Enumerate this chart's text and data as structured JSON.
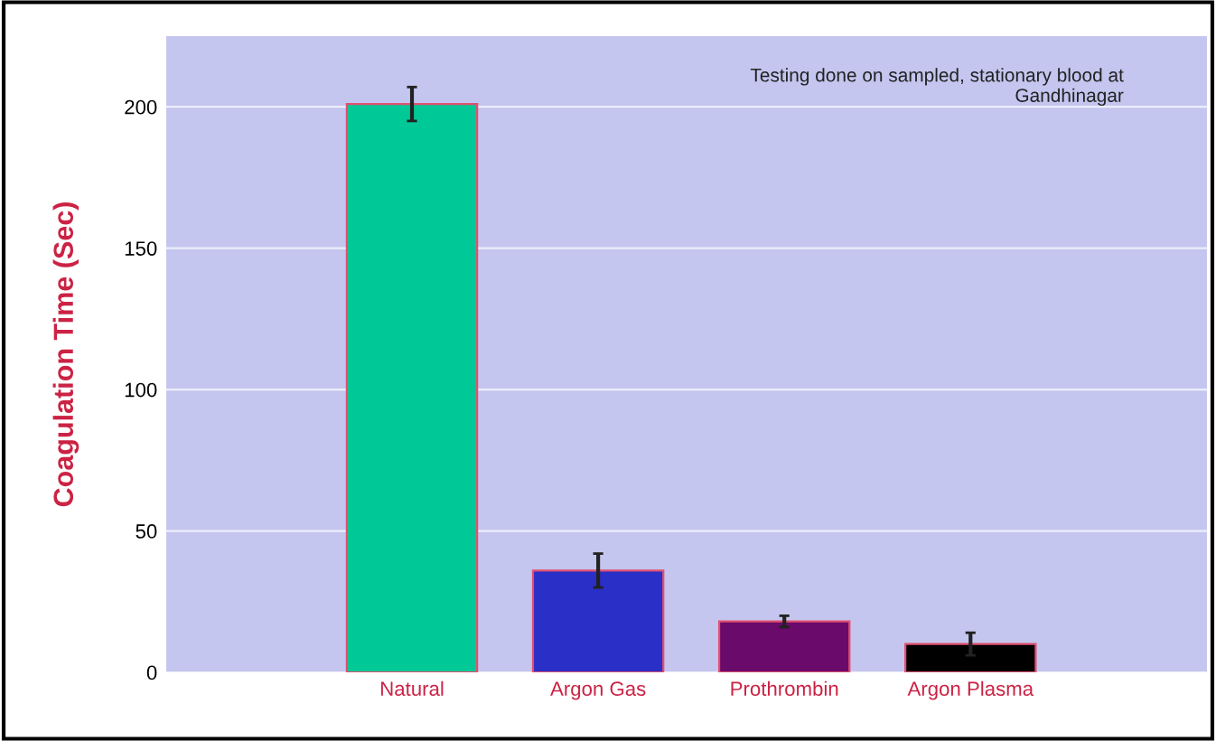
{
  "chart_data": {
    "type": "bar",
    "ylabel": "Coagulation Time (Sec)",
    "categories": [
      "Natural",
      "Argon Gas",
      "Prothrombin",
      "Argon Plasma"
    ],
    "values": [
      201,
      36,
      18,
      10
    ],
    "errors": [
      6,
      6,
      2,
      4
    ],
    "colors": [
      "#00c896",
      "#2a2fc8",
      "#6a0a6a",
      "#000000"
    ],
    "ylim": [
      0,
      225
    ],
    "yticks": [
      0,
      50,
      100,
      150,
      200
    ],
    "grid": "y",
    "annotations": [
      "Testing done on sampled, stationary blood at\nGandhinagar"
    ]
  }
}
